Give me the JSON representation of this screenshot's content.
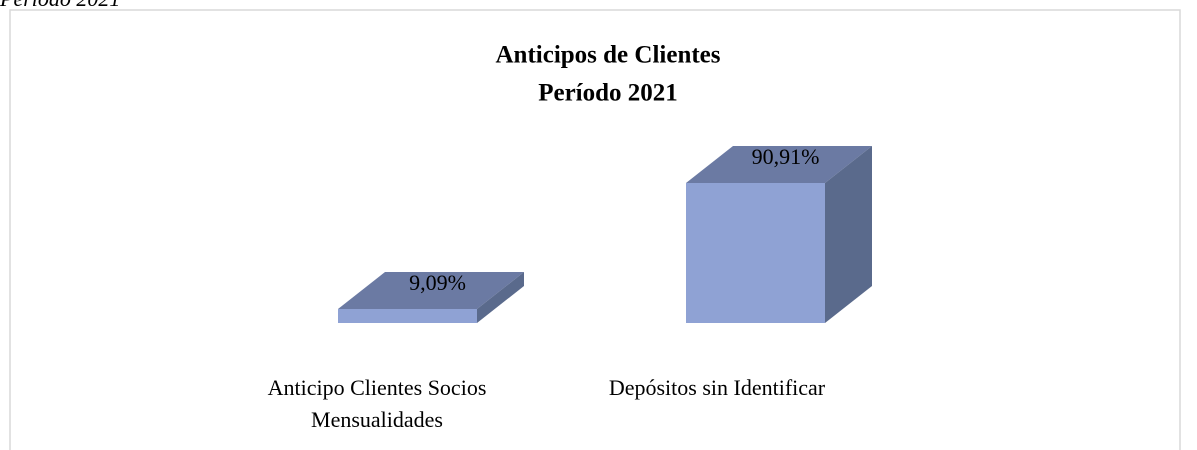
{
  "caption": "Período 2021",
  "chart_data": {
    "type": "bar3d",
    "title": "Anticipos de Clientes",
    "subtitle": "Período 2021",
    "categories": [
      "Anticipo Clientes Socios Mensualidades",
      "Depósitos sin Identificar"
    ],
    "values": [
      9.09,
      90.91
    ],
    "value_labels": [
      "9,09%",
      "90,91%"
    ],
    "color": "#8fa2d4",
    "ylim": [
      0,
      100
    ]
  }
}
